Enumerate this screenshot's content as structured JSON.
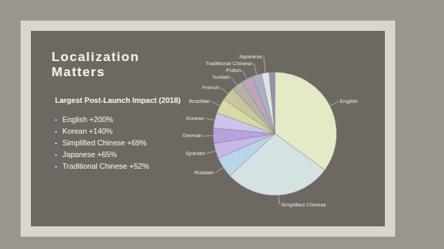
{
  "slide": {
    "title": "Localization Matters",
    "subtitle": "Largest Post-Launch Impact (2018)",
    "bullets": [
      "English +200%",
      "Korean +140%",
      "Simplified Chinese +69%",
      "Japanese +65%",
      "Traditional Chinese +52%"
    ]
  },
  "chart_data": {
    "type": "pie",
    "categories": [
      "English",
      "Simplified Chinese",
      "Russian",
      "Spanish",
      "German",
      "Korean",
      "Brazilian",
      "French",
      "Turkish",
      "Polish",
      "Traditional Chinese",
      "Japanese",
      null
    ],
    "values": [
      35,
      28,
      5.5,
      4,
      4,
      4,
      4,
      3.5,
      3,
      3,
      2.5,
      2,
      1.5
    ],
    "colors": [
      "#e4eac6",
      "#d5e2e2",
      "#b8d6ea",
      "#c6b8ea",
      "#b7a2e0",
      "#cdc4ec",
      "#d9d8a6",
      "#c8c79a",
      "#b3b3a3",
      "#c2a3bb",
      "#a9b2c4",
      "#e2e2e2",
      "#9292b2"
    ],
    "legend": false
  }
}
